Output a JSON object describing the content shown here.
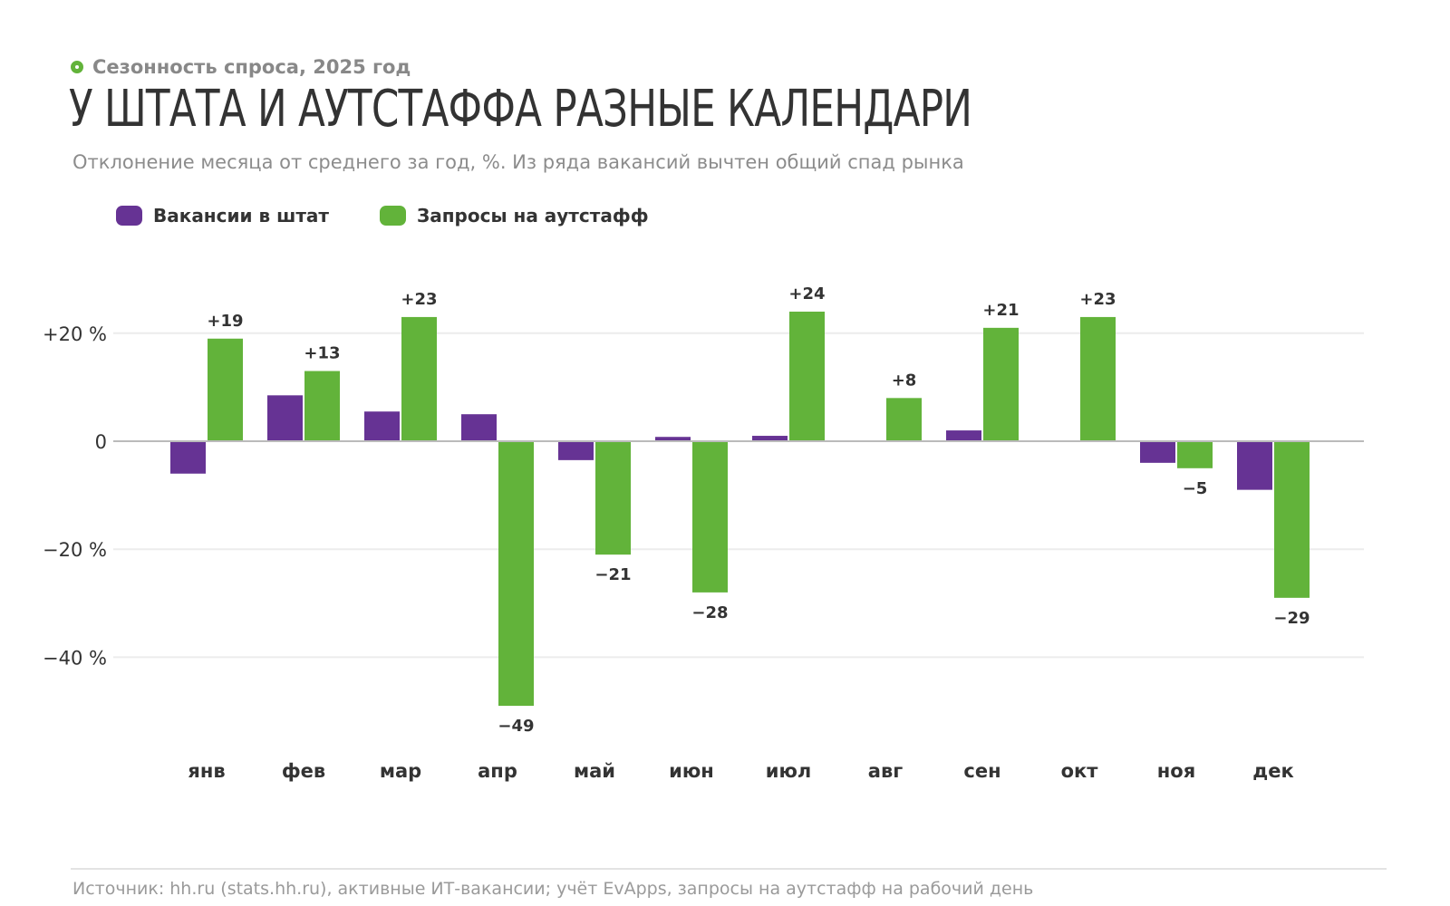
{
  "header": {
    "kicker": "Сезонность спроса, 2025 год",
    "title": "У ШТАТА И АУТСТАФФА РАЗНЫЕ КАЛЕНДАРИ",
    "subtitle": "Отклонение месяца от среднего за год, %. Из ряда вакансий вычтен общий спад рынка"
  },
  "legend": {
    "items": [
      {
        "label": "Вакансии в штат",
        "color": "#663394"
      },
      {
        "label": "Запросы на аутстафф",
        "color": "#62b33a"
      }
    ]
  },
  "footer": {
    "source": "Источник: hh.ru (stats.hh.ru), активные ИТ-вакансии; учёт EvApps, запросы на аутстафф на рабочий день"
  },
  "colors": {
    "staff": "#663394",
    "outstaff": "#62b33a",
    "accent": "#62b33a",
    "zero_line": "#bbbbbb",
    "grid": "#ececec"
  },
  "chart_data": {
    "type": "bar",
    "categories": [
      "янв",
      "фев",
      "мар",
      "апр",
      "май",
      "июн",
      "июл",
      "авг",
      "сен",
      "окт",
      "ноя",
      "дек"
    ],
    "series": [
      {
        "name": "Вакансии в штат",
        "values": [
          -6,
          8.5,
          5.5,
          5,
          -3.5,
          0.8,
          1,
          0,
          2,
          0,
          -4,
          -9
        ]
      },
      {
        "name": "Запросы на аутстафф",
        "values": [
          19,
          13,
          23,
          -49,
          -21,
          -28,
          24,
          8,
          21,
          23,
          -5,
          -29
        ]
      }
    ],
    "data_labels": {
      "series": "Запросы на аутстафф",
      "labels": [
        "+19",
        "+13",
        "+23",
        "−49",
        "−21",
        "−28",
        "+24",
        "+8",
        "+21",
        "+23",
        "−5",
        "−29"
      ]
    },
    "y_ticks": [
      {
        "value": 20,
        "label": "+20 %"
      },
      {
        "value": 0,
        "label": "0"
      },
      {
        "value": -20,
        "label": "−20 %"
      },
      {
        "value": -40,
        "label": "−40 %"
      }
    ],
    "ylim": [
      -52,
      28
    ],
    "grid": true,
    "legend_position": "top-left",
    "xlabel": "",
    "ylabel": ""
  }
}
